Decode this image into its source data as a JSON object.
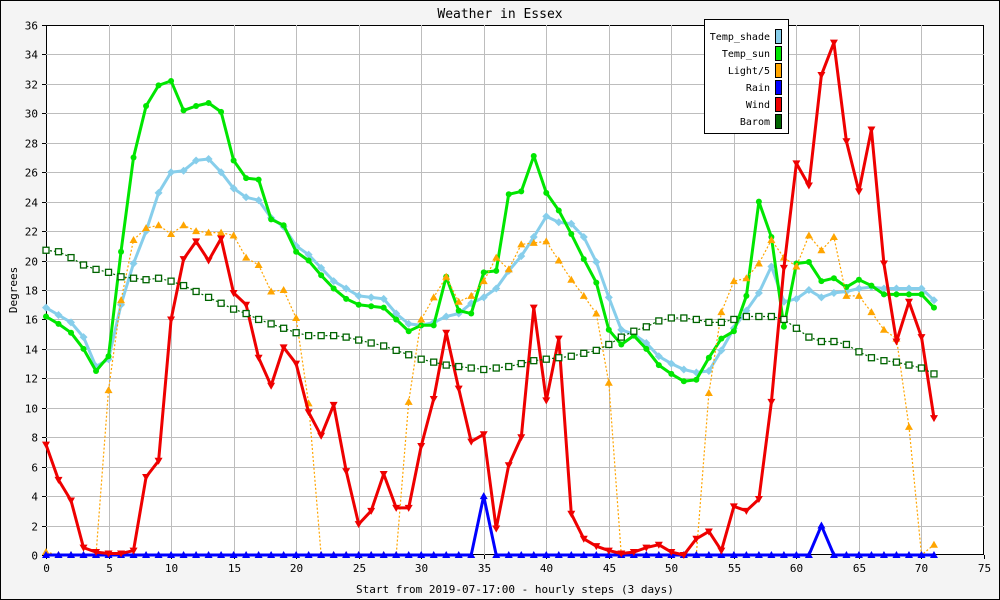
{
  "chart_data": {
    "type": "line",
    "title": "Weather in Essex",
    "xlabel": "Start from 2019-07-17:00 - hourly steps (3 days)",
    "ylabel": "Degrees",
    "xlim": [
      0,
      75
    ],
    "ylim": [
      0,
      36
    ],
    "xticks": [
      0,
      5,
      10,
      15,
      20,
      25,
      30,
      35,
      40,
      45,
      50,
      55,
      60,
      65,
      70,
      75
    ],
    "yticks": [
      0,
      2,
      4,
      6,
      8,
      10,
      12,
      14,
      16,
      18,
      20,
      22,
      24,
      26,
      28,
      30,
      32,
      34,
      36
    ],
    "grid": true,
    "legend_position": "top-right",
    "series": [
      {
        "name": "Temp_shade",
        "color": "#87ceeb",
        "marker": "diamond",
        "width": 3,
        "dash": "",
        "values": [
          16.8,
          16.3,
          15.8,
          14.8,
          12.8,
          13.3,
          17.0,
          19.8,
          22.0,
          24.6,
          26.0,
          26.1,
          26.8,
          26.9,
          26.0,
          24.9,
          24.3,
          24.1,
          22.9,
          22.3,
          21.0,
          20.4,
          19.5,
          18.6,
          18.1,
          17.6,
          17.5,
          17.4,
          16.4,
          15.7,
          15.6,
          15.8,
          16.2,
          16.4,
          17.1,
          17.5,
          18.1,
          19.3,
          20.3,
          21.6,
          23.0,
          22.6,
          22.5,
          21.6,
          19.9,
          17.5,
          15.3,
          15.0,
          14.4,
          13.5,
          13.0,
          12.6,
          12.4,
          12.5,
          13.9,
          15.4,
          16.6,
          17.8,
          19.6,
          17.2,
          17.4,
          18.0,
          17.5,
          17.8,
          17.9,
          18.1,
          18.2,
          18.1,
          18.1,
          18.1,
          18.1,
          17.3
        ]
      },
      {
        "name": "Temp_sun",
        "color": "#00e600",
        "marker": "circle",
        "width": 3,
        "dash": "",
        "values": [
          16.2,
          15.7,
          15.1,
          14.0,
          12.5,
          13.5,
          20.6,
          27.0,
          30.5,
          31.9,
          32.2,
          30.2,
          30.5,
          30.7,
          30.1,
          26.8,
          25.6,
          25.5,
          22.8,
          22.4,
          20.6,
          20.0,
          19.0,
          18.1,
          17.4,
          17.0,
          16.9,
          16.8,
          16.0,
          15.2,
          15.6,
          15.6,
          18.9,
          16.6,
          16.4,
          19.2,
          19.3,
          24.5,
          24.7,
          27.1,
          24.6,
          23.4,
          21.8,
          20.1,
          18.5,
          15.3,
          14.3,
          14.9,
          14.0,
          12.9,
          12.3,
          11.8,
          11.9,
          13.4,
          14.7,
          15.2,
          17.6,
          24.0,
          21.6,
          15.5,
          19.8,
          19.9,
          18.6,
          18.8,
          18.2,
          18.7,
          18.3,
          17.7,
          17.7,
          17.7,
          17.7,
          16.8
        ]
      },
      {
        "name": "Light/5",
        "color": "#ffa500",
        "marker": "triangle-up",
        "width": 1.2,
        "dash": "2,2",
        "values": [
          0.2,
          0,
          0,
          0,
          0,
          11.2,
          17.3,
          21.4,
          22.2,
          22.4,
          21.8,
          22.4,
          22.0,
          21.9,
          21.9,
          21.7,
          20.2,
          19.7,
          17.9,
          18.0,
          16.1,
          10.3,
          0,
          0,
          0,
          0,
          0,
          0,
          0,
          10.4,
          16.0,
          17.5,
          18.9,
          17.2,
          17.6,
          18.6,
          20.2,
          19.4,
          21.1,
          21.2,
          21.3,
          20.0,
          18.7,
          17.6,
          16.4,
          11.7,
          0,
          0,
          0,
          0,
          0,
          0,
          0,
          11.0,
          16.5,
          18.6,
          18.8,
          19.8,
          21.4,
          20.2,
          19.6,
          21.7,
          20.7,
          21.6,
          17.6,
          17.6,
          16.5,
          15.3,
          14.7,
          8.7,
          0,
          0.7
        ]
      },
      {
        "name": "Rain",
        "color": "#0000ff",
        "marker": "triangle-up",
        "width": 3,
        "dash": "",
        "values": [
          0,
          0,
          0,
          0,
          0,
          0,
          0,
          0,
          0,
          0,
          0,
          0,
          0,
          0,
          0,
          0,
          0,
          0,
          0,
          0,
          0,
          0,
          0,
          0,
          0,
          0,
          0,
          0,
          0,
          0,
          0,
          0,
          0,
          0,
          0,
          4.0,
          0,
          0,
          0,
          0,
          0,
          0,
          0,
          0,
          0,
          0,
          0,
          0,
          0,
          0,
          0,
          0,
          0,
          0,
          0,
          0,
          0,
          0,
          0,
          0,
          0,
          0,
          2.0,
          0,
          0,
          0,
          0,
          0,
          0,
          0,
          0,
          0
        ]
      },
      {
        "name": "Wind",
        "color": "#ee0000",
        "marker": "triangle-down",
        "width": 3,
        "dash": "",
        "values": [
          7.5,
          5.1,
          3.7,
          0.5,
          0.2,
          0.1,
          0.1,
          0.3,
          5.3,
          6.4,
          16.0,
          20.1,
          21.3,
          20.0,
          21.5,
          17.8,
          17.0,
          13.4,
          11.5,
          14.1,
          13.0,
          9.7,
          8.1,
          10.2,
          5.7,
          2.1,
          3.0,
          5.5,
          3.2,
          3.2,
          7.4,
          10.6,
          15.1,
          11.3,
          7.7,
          8.2,
          1.8,
          6.1,
          8.0,
          16.8,
          10.5,
          14.7,
          2.8,
          1.1,
          0.6,
          0.3,
          0.1,
          0.2,
          0.5,
          0.7,
          0.2,
          0,
          1.1,
          1.6,
          0.3,
          3.3,
          3.0,
          3.8,
          10.4,
          19.5,
          26.6,
          25.1,
          32.6,
          34.8,
          28.1,
          24.7,
          28.9,
          19.8,
          14.5,
          17.2,
          14.8,
          9.3
        ]
      },
      {
        "name": "Barom",
        "color": "#006400",
        "marker": "square",
        "width": 1.2,
        "dash": "2,2",
        "values": [
          20.7,
          20.6,
          20.2,
          19.7,
          19.4,
          19.2,
          18.9,
          18.8,
          18.7,
          18.8,
          18.6,
          18.3,
          17.9,
          17.5,
          17.1,
          16.7,
          16.4,
          16.0,
          15.7,
          15.4,
          15.1,
          14.9,
          14.9,
          14.9,
          14.8,
          14.6,
          14.4,
          14.2,
          13.9,
          13.6,
          13.3,
          13.1,
          12.9,
          12.8,
          12.7,
          12.6,
          12.7,
          12.8,
          13.0,
          13.2,
          13.3,
          13.4,
          13.5,
          13.7,
          13.9,
          14.3,
          14.8,
          15.2,
          15.5,
          15.9,
          16.1,
          16.1,
          16.0,
          15.8,
          15.8,
          16.0,
          16.2,
          16.2,
          16.2,
          16.0,
          15.4,
          14.8,
          14.5,
          14.5,
          14.3,
          13.8,
          13.4,
          13.2,
          13.1,
          12.9,
          12.7,
          12.3
        ]
      }
    ]
  }
}
